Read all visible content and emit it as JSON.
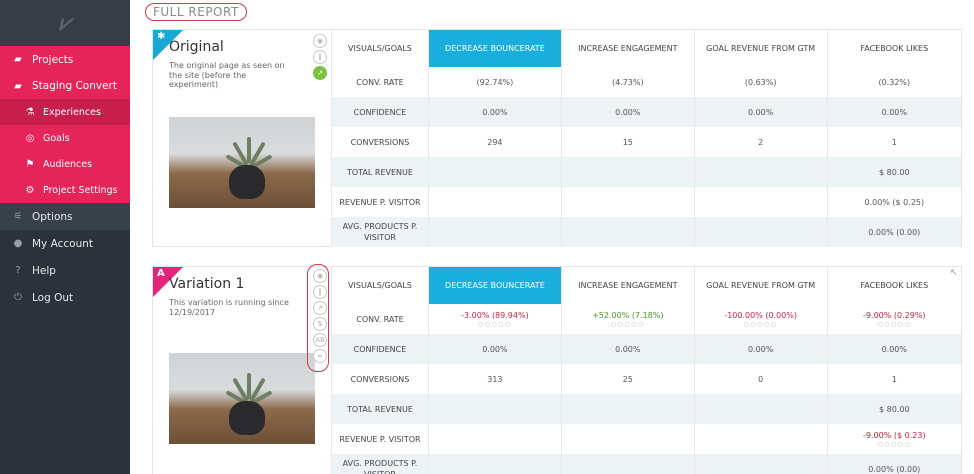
{
  "sidebar": {
    "logo": "\\\\/",
    "items": [
      {
        "label": "Projects",
        "icon": "folder-icon"
      },
      {
        "label": "Staging Convert",
        "icon": "folder-icon"
      },
      {
        "label": "Experiences",
        "icon": "flask-icon"
      },
      {
        "label": "Goals",
        "icon": "target-icon"
      },
      {
        "label": "Audiences",
        "icon": "flag-icon"
      },
      {
        "label": "Project Settings",
        "icon": "gear-icon"
      },
      {
        "label": "Options",
        "icon": "sliders-icon"
      },
      {
        "label": "My Account",
        "icon": "user-icon"
      },
      {
        "label": "Help",
        "icon": "help-icon"
      },
      {
        "label": "Log Out",
        "icon": "power-icon"
      }
    ]
  },
  "report": {
    "title": "FULL REPORT",
    "columns": [
      "VISUALS/GOALS",
      "DECREASE BOUNCERATE",
      "INCREASE ENGAGEMENT",
      "GOAL REVENUE FROM GTM",
      "FACEBOOK LIKES"
    ],
    "row_labels": [
      "CONV. RATE",
      "CONFIDENCE",
      "CONVERSIONS",
      "TOTAL REVENUE",
      "REVENUE P. VISITOR",
      "AVG. PRODUCTS P. VISITOR"
    ],
    "original": {
      "ribbon": "✱",
      "title": "Original",
      "desc": "The original page as seen on the site (before the experiment)",
      "conv_rate": [
        "(92.74%)",
        "(4.73%)",
        "(0.63%)",
        "(0.32%)"
      ],
      "confidence": [
        "0.00%",
        "0.00%",
        "0.00%",
        "0.00%"
      ],
      "conversions": [
        "294",
        "15",
        "2",
        "1"
      ],
      "total_revenue": "$ 80.00",
      "revenue_per_visitor": "0.00% ($ 0.25)",
      "avg_products": "0.00% (0.00)"
    },
    "variation1": {
      "ribbon": "A",
      "title": "Variation 1",
      "desc": "This variation is running since 12/19/2017",
      "conv_rate": [
        "-3.00%  (89.94%)",
        "+52.00%  (7.18%)",
        "-100.00%  (0.00%)",
        "-9.00%  (0.29%)"
      ],
      "confidence": [
        "0.00%",
        "0.00%",
        "0.00%",
        "0.00%"
      ],
      "conversions": [
        "313",
        "25",
        "0",
        "1"
      ],
      "total_revenue": "$ 80.00",
      "revenue_per_visitor": "-9.00% ($ 0.23)",
      "avg_products": "0.00% (0.00)",
      "avg_label_wrap": "AVG. PRODUCTS P. VISITOR"
    },
    "dots": "○○○○○"
  },
  "colors": {
    "sidebar_bg": "#2b323c",
    "accent_pink": "#e5245a",
    "header_highlight": "#1aaedc",
    "negative": "#d0233e",
    "positive": "#4a9a2a"
  }
}
